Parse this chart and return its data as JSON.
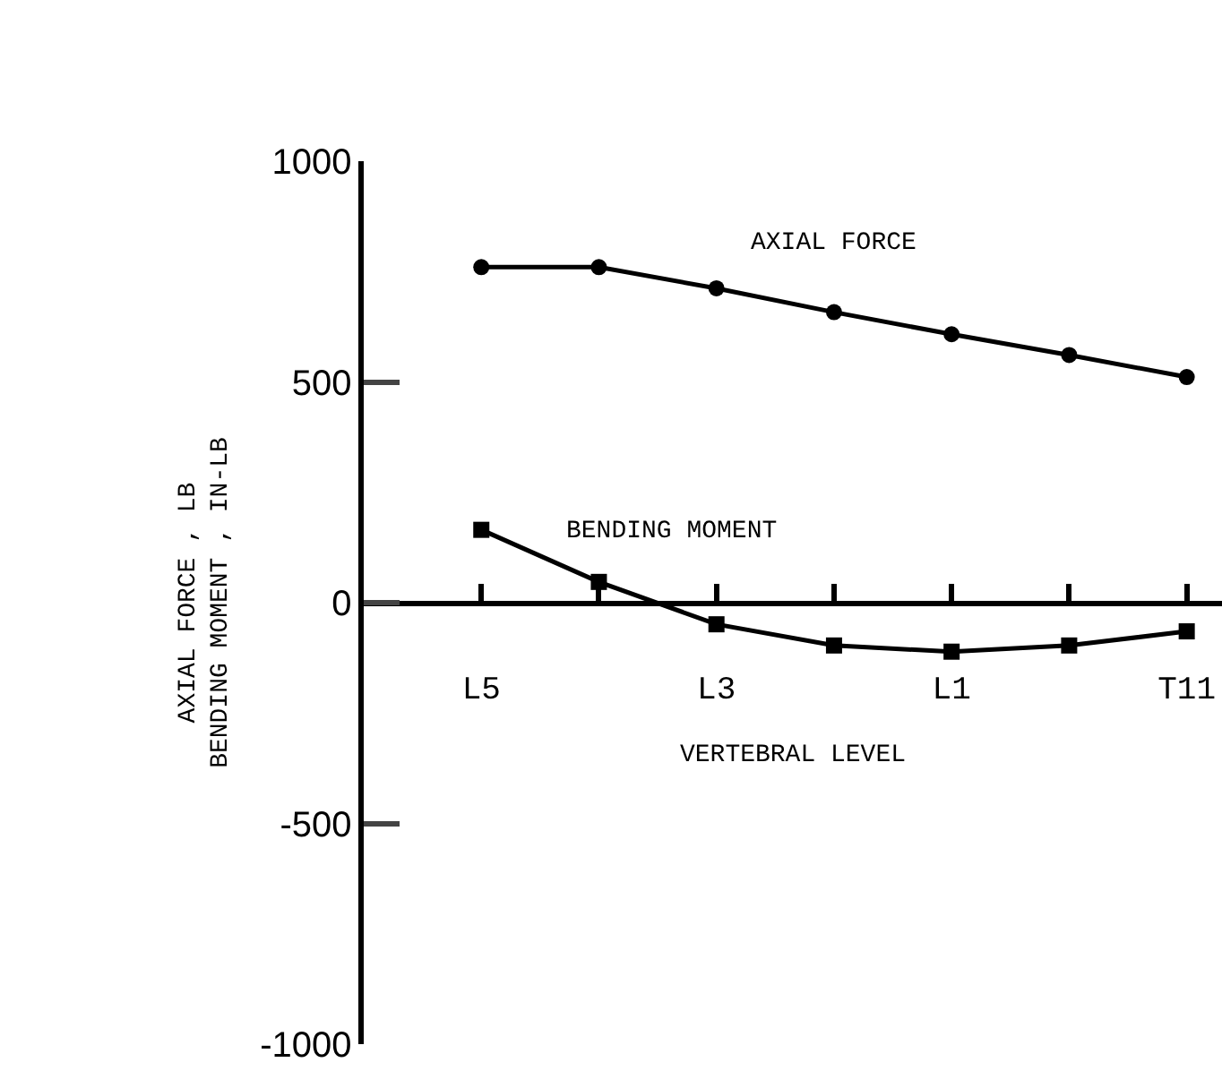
{
  "chart_data": {
    "type": "line",
    "xlabel": "VERTEBRAL LEVEL",
    "ylabel": "AXIAL FORCE , LB\nBENDING MOMENT , IN-LB",
    "categories": [
      "L5",
      null,
      "L3",
      null,
      "L1",
      null,
      "T11"
    ],
    "series": [
      {
        "name": "AXIAL FORCE",
        "color": "#000000",
        "marker": "circle",
        "values": [
          760,
          760,
          712,
          658,
          608,
          561,
          511
        ]
      },
      {
        "name": "BENDING MOMENT",
        "color": "#000000",
        "marker": "square",
        "values": [
          165,
          47,
          -49,
          -97,
          -111,
          -97,
          -65
        ]
      }
    ],
    "ylim": [
      -1000,
      1000
    ],
    "yticks": [
      1000,
      500,
      0,
      -500,
      -1000
    ],
    "legend": false,
    "line_style": "solid"
  }
}
